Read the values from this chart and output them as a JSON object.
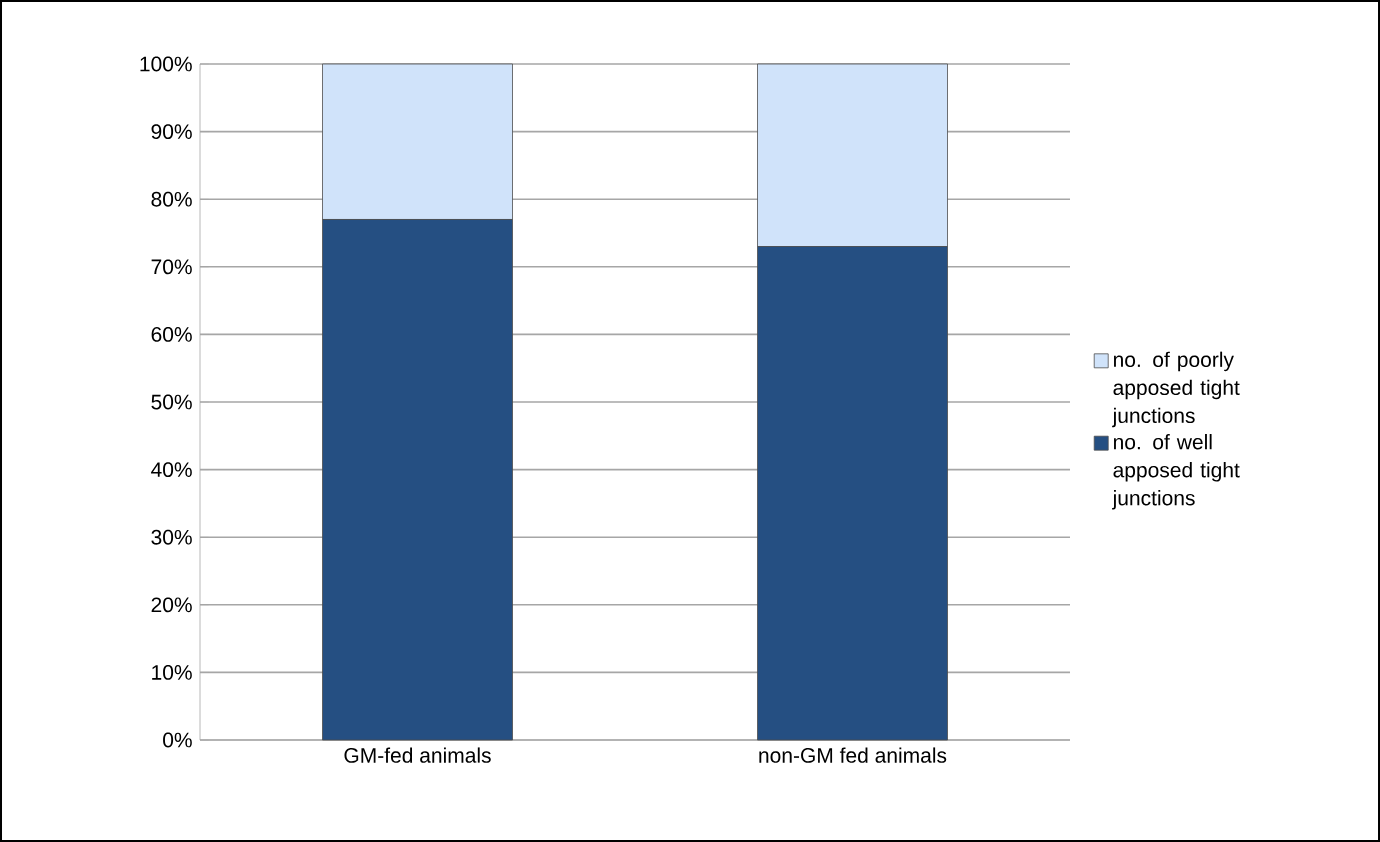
{
  "chart_data": {
    "type": "bar",
    "stacked": true,
    "categories": [
      "GM-fed animals",
      "non-GM fed animals"
    ],
    "series": [
      {
        "name": "no. of well apposed tight junctions",
        "color": "#254f82",
        "values": [
          77,
          73
        ]
      },
      {
        "name": "no. of poorly apposed tight junctions",
        "color": "#d0e3fa",
        "values": [
          23,
          27
        ]
      }
    ],
    "ylim": [
      0,
      100
    ],
    "yticks": [
      {
        "value": 0,
        "label": "0%"
      },
      {
        "value": 10,
        "label": "10%"
      },
      {
        "value": 20,
        "label": "20%"
      },
      {
        "value": 30,
        "label": "30%"
      },
      {
        "value": 40,
        "label": "40%"
      },
      {
        "value": 50,
        "label": "50%"
      },
      {
        "value": 60,
        "label": "60%"
      },
      {
        "value": 70,
        "label": "70%"
      },
      {
        "value": 80,
        "label": "80%"
      },
      {
        "value": 90,
        "label": "90%"
      },
      {
        "value": 100,
        "label": "100%"
      }
    ],
    "grid": "y",
    "legend": "right"
  }
}
